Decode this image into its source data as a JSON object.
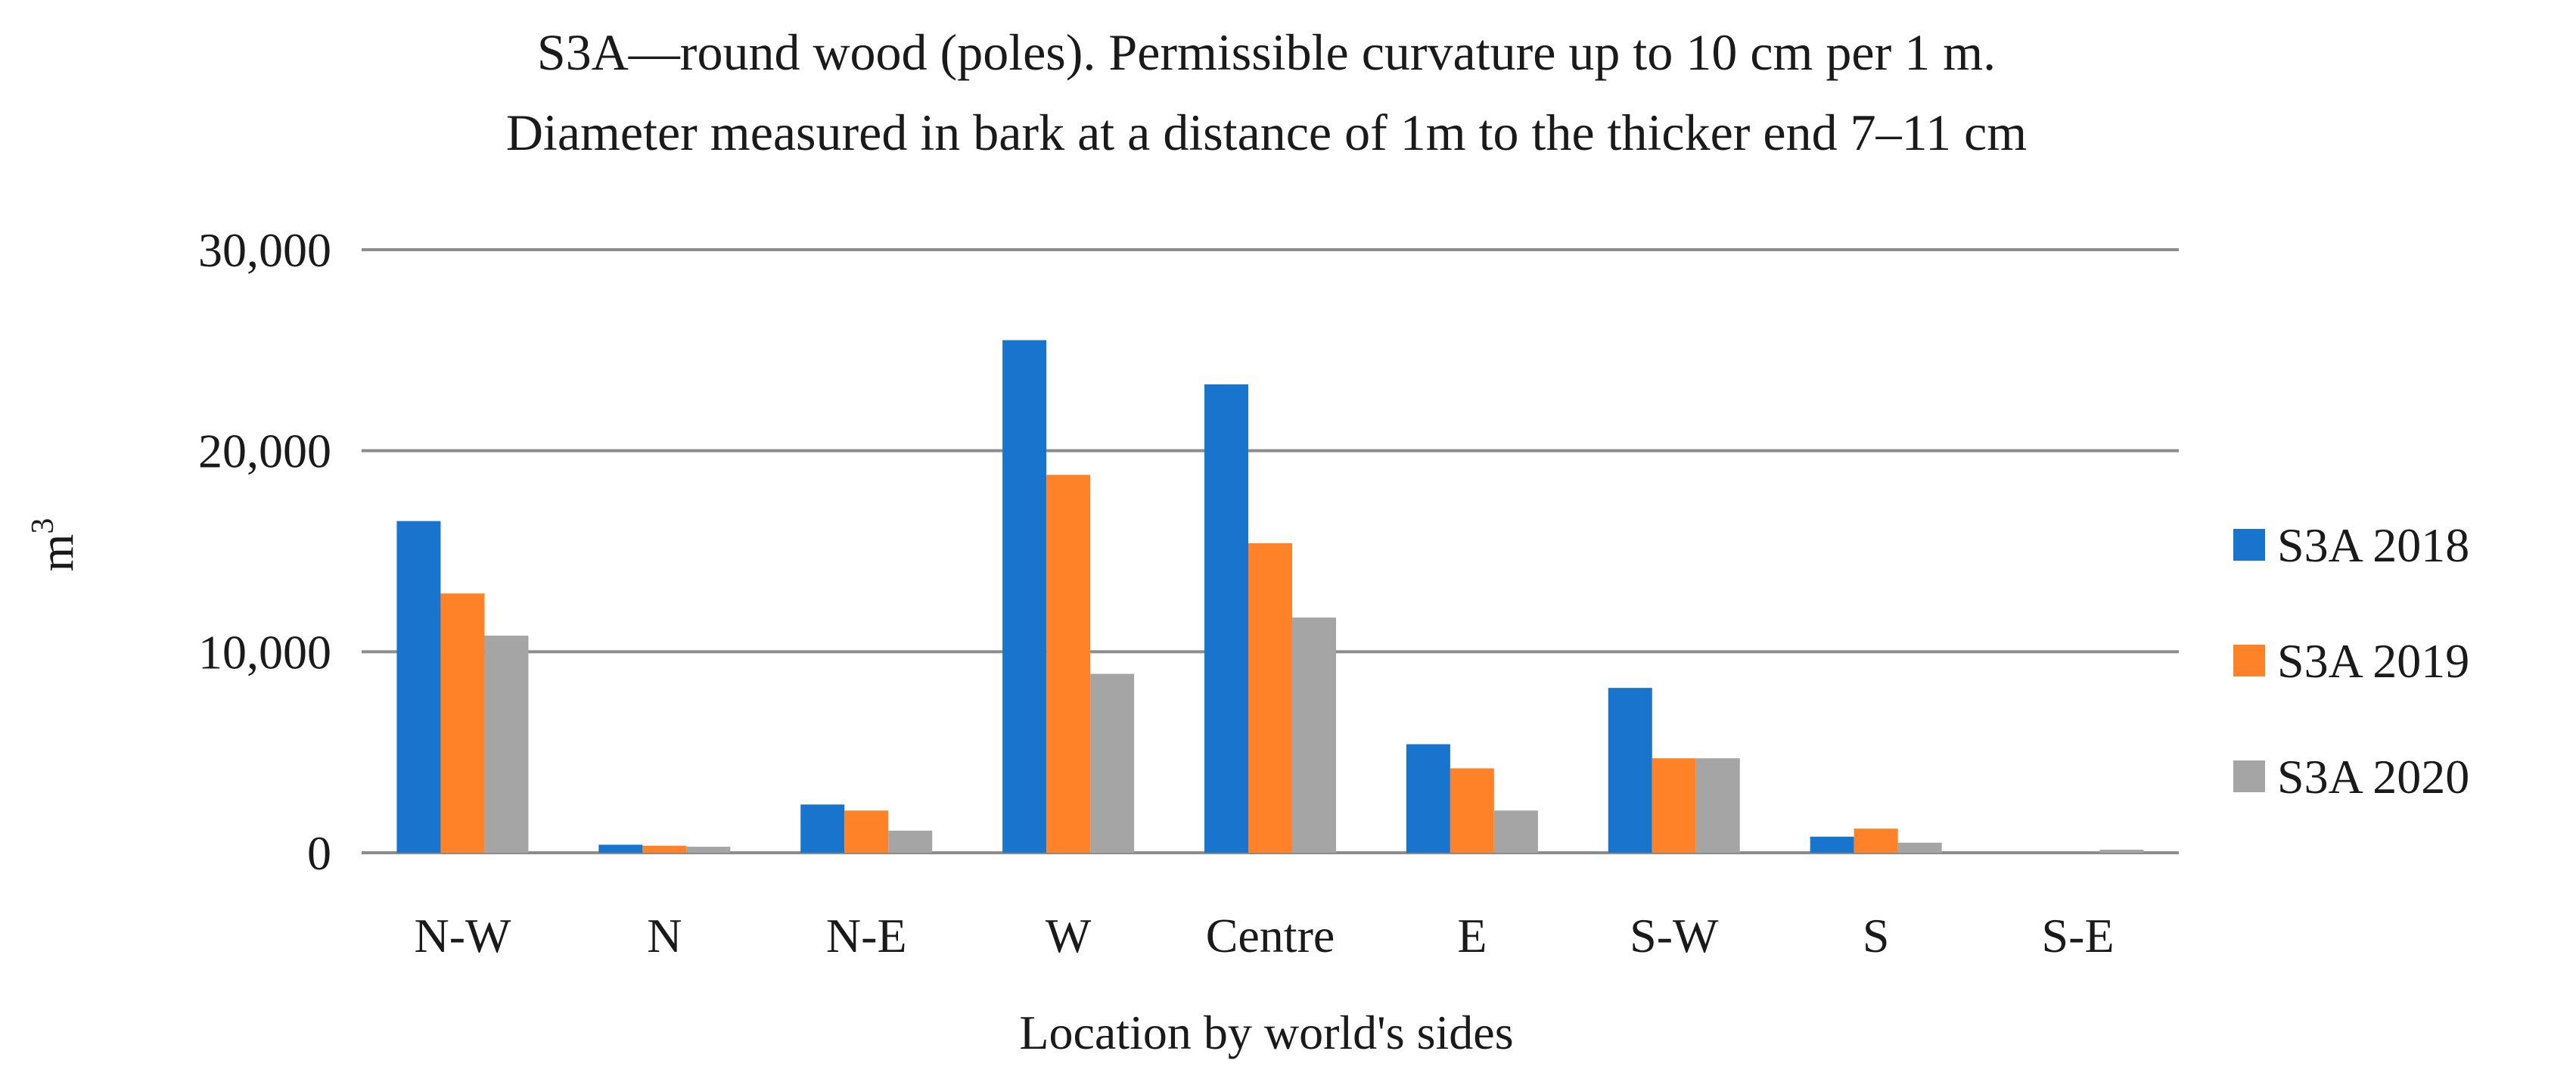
{
  "chart_data": {
    "type": "bar",
    "title": "S3A—round wood (poles). Permissible curvature up to 10 cm per 1 m.",
    "subtitle": "Diameter measured in bark at a distance of 1m to the thicker end 7–11 cm",
    "xlabel": "Location by world's sides",
    "ylabel": "m",
    "ylabel_sup": "3",
    "ylim": [
      0,
      30000
    ],
    "yticks": [
      0,
      10000,
      20000,
      30000
    ],
    "ytick_labels": [
      "0",
      "10,000",
      "20,000",
      "30,000"
    ],
    "grid": true,
    "legend_position": "right",
    "categories": [
      "N-W",
      "N",
      "N-E",
      "W",
      "Centre",
      "E",
      "S-W",
      "S",
      "S-E"
    ],
    "series": [
      {
        "name": "S3A 2018",
        "color": "#1874CD",
        "values": [
          16500,
          400,
          2400,
          25500,
          23300,
          5400,
          8200,
          800,
          0
        ]
      },
      {
        "name": "S3A 2019",
        "color": "#FF8228",
        "values": [
          12900,
          350,
          2100,
          18800,
          15400,
          4200,
          4700,
          1200,
          0
        ]
      },
      {
        "name": "S3A 2020",
        "color": "#A5A5A5",
        "values": [
          10800,
          300,
          1100,
          8900,
          11700,
          2100,
          4700,
          500,
          150
        ]
      }
    ]
  }
}
